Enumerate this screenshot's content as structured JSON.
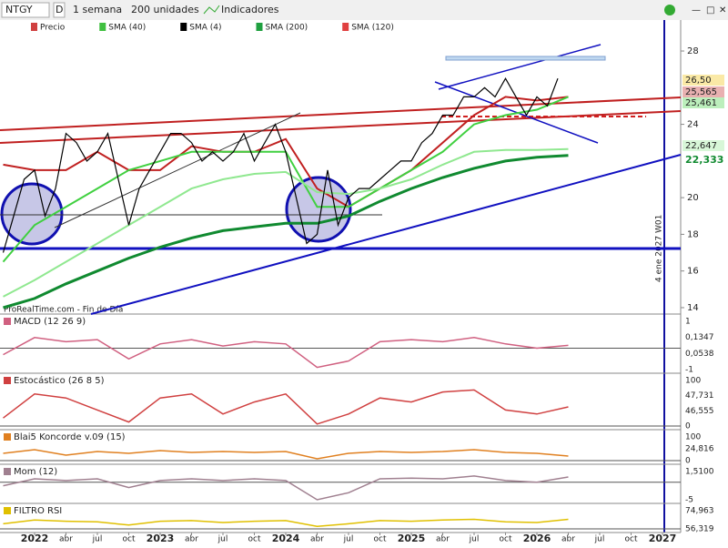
{
  "toolbar": {
    "ticker": "NTGY",
    "mode": "D",
    "period": "1 semana",
    "units": "200 unidades",
    "indicators": "Indicadores"
  },
  "legend": [
    "Precio",
    "SMA (40)",
    "SMA (4)",
    "SMA (200)",
    "SMA (120)"
  ],
  "legend_colors": [
    "#d04040",
    "#40c040",
    "#000000",
    "#20a040",
    "#e04040"
  ],
  "main": {
    "ylim": [
      13.65,
      29.69
    ],
    "yticks": [
      28,
      24,
      20,
      18,
      16,
      14
    ],
    "price": {
      "color": "#000000",
      "values": [
        17,
        19,
        21,
        21.5,
        19,
        20.5,
        23.5,
        23,
        22,
        22.5,
        23.5,
        21,
        18.5,
        20.5,
        21.5,
        22.5,
        23.5,
        23.5,
        23,
        22,
        22.5,
        22,
        22.5,
        23.5,
        22,
        23,
        24,
        22.5,
        20,
        17.5,
        18,
        21.5,
        18.5,
        20,
        20.5,
        20.5,
        21,
        21.5,
        22,
        22,
        23,
        23.5,
        24.5,
        24.5,
        25.5,
        25.5,
        26,
        25.5,
        26.5,
        25.5,
        24.5,
        25.5,
        25,
        26.5
      ]
    },
    "sma": [
      {
        "color": "#c02020",
        "values": [
          21.8,
          21.5,
          21.5,
          22.5,
          21.5,
          21.5,
          22.8,
          22.5,
          22.5,
          23.2,
          20.5,
          19.5,
          20.5,
          21.5,
          23,
          24.5,
          25.5,
          25.3,
          25.5
        ]
      },
      {
        "color": "#40d040",
        "values": [
          16.5,
          18.5,
          19.5,
          20.5,
          21.5,
          22,
          22.5,
          22.5,
          22.5,
          22.5,
          19.5,
          19.5,
          20.5,
          21.5,
          22.5,
          24,
          24.5,
          24.8,
          25.5
        ]
      },
      {
        "color": "#90e890",
        "values": [
          14.6,
          15.5,
          16.5,
          17.5,
          18.5,
          19.5,
          20.5,
          21,
          21.3,
          21.4,
          20.3,
          20.2,
          20.5,
          21,
          21.8,
          22.5,
          22.6,
          22.6,
          22.65
        ]
      },
      {
        "color": "#108a30",
        "values": [
          14,
          14.5,
          15.3,
          16,
          16.7,
          17.3,
          17.8,
          18.2,
          18.4,
          18.6,
          18.6,
          19,
          19.8,
          20.5,
          21.1,
          21.6,
          22,
          22.2,
          22.3
        ]
      }
    ],
    "value_labels": [
      "26,50",
      "25,565",
      "25,461",
      "22,647",
      "22,333"
    ],
    "watermark": "ProRealTime.com - Fin de Día",
    "vline_label": "4 ene 2027 W01"
  },
  "panels": [
    {
      "title": "MACD (12 26 9)",
      "ylim": [
        -1,
        1
      ],
      "color": "#d06080",
      "values": [
        -0.3,
        0.5,
        0.3,
        0.4,
        -0.5,
        0.2,
        0.4,
        0.1,
        0.3,
        0.2,
        -0.9,
        -0.6,
        0.3,
        0.4,
        0.3,
        0.5,
        0.2,
        0.0,
        0.13
      ],
      "labels": [
        "1",
        "0,1347",
        "0,0538",
        "-1"
      ]
    },
    {
      "title": "Estocástico (26 8 5)",
      "ylim": [
        0,
        100
      ],
      "color": "#d04040",
      "values": [
        20,
        80,
        70,
        40,
        10,
        70,
        80,
        30,
        60,
        80,
        5,
        30,
        70,
        60,
        85,
        90,
        40,
        30,
        47.7
      ],
      "labels": [
        "100",
        "47,731",
        "46,555",
        "0"
      ]
    },
    {
      "title": "Blai5 Koncorde v.09 (15)",
      "ylim": [
        0,
        100
      ],
      "color": "#e08020",
      "values": [
        40,
        60,
        30,
        50,
        40,
        55,
        45,
        50,
        45,
        50,
        10,
        40,
        50,
        45,
        50,
        60,
        45,
        40,
        24.8
      ],
      "labels": [
        "100",
        "24,816",
        "0"
      ]
    },
    {
      "title": "Mom (12)",
      "ylim": [
        -5,
        1.51
      ],
      "color": "#a08090",
      "values": [
        -1,
        1,
        0.5,
        1,
        -1.5,
        0.5,
        1,
        0.5,
        1,
        0.5,
        -5,
        -3,
        1,
        1.2,
        1,
        1.8,
        0.5,
        0,
        1.51
      ],
      "labels": [
        "1,5100",
        "-5"
      ]
    },
    {
      "title": "FILTRO RSI",
      "ylim": [
        0,
        100
      ],
      "color": "#e0c000",
      "values": [
        40,
        70,
        60,
        55,
        30,
        60,
        65,
        50,
        60,
        65,
        20,
        40,
        65,
        60,
        70,
        75,
        55,
        50,
        74.963
      ],
      "labels": [
        "74,963",
        "56,319"
      ]
    }
  ],
  "xaxis": [
    "2022",
    "abr",
    "jul",
    "oct",
    "2023",
    "abr",
    "jul",
    "oct",
    "2024",
    "abr",
    "jul",
    "oct",
    "2025",
    "abr",
    "jul",
    "oct",
    "2026",
    "abr",
    "jul",
    "oct",
    "2027"
  ]
}
